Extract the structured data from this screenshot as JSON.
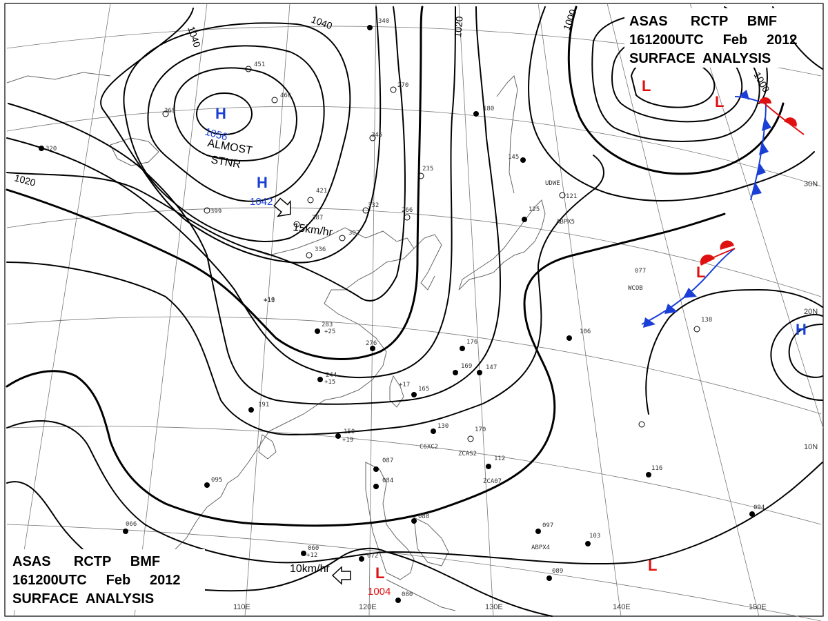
{
  "header": {
    "line1": "ASAS      RCTP     BMF",
    "line2": "161200UTC     Feb     2012",
    "line3": "SURFACE  ANALYSIS"
  },
  "isobar_labels": [
    "1040",
    "1040",
    "1020",
    "1020",
    "1000",
    "1000"
  ],
  "systems": {
    "high_main": {
      "letter": "H",
      "value": "1056",
      "color": "#1a3fd6"
    },
    "high_second": {
      "letter": "H",
      "value": "1042",
      "color": "#1a3fd6"
    },
    "high_east": {
      "letter": "H",
      "color": "#1a3fd6"
    },
    "low_north": {
      "letter": "L",
      "color": "#e01010"
    },
    "low_north2": {
      "letter": "L",
      "color": "#e01010"
    },
    "low_front": {
      "letter": "L",
      "color": "#e01010"
    },
    "low_south": {
      "letter": "L",
      "value": "1004",
      "color": "#e01010"
    },
    "low_southeast": {
      "letter": "L",
      "color": "#e01010"
    }
  },
  "annotations": {
    "stationary_line1": "ALMOST",
    "stationary_line2": "STNR",
    "motion_north": "15km/hr",
    "motion_south": "10km/hr"
  },
  "lon_labels": [
    "110E",
    "120E",
    "130E",
    "140E",
    "150E"
  ],
  "lat_labels": [
    "30N",
    "20N",
    "10N"
  ],
  "ship_ids": [
    "UDWE",
    "ABPX5",
    "WCOB",
    "C6XC2",
    "ZCAS2",
    "ZCA07",
    "ABPX4"
  ],
  "station_obs": [
    "340",
    "466",
    "451",
    "421",
    "387",
    "336",
    "302",
    "276",
    "283",
    "244",
    "191",
    "150",
    "084",
    "087",
    "088",
    "080",
    "072",
    "066",
    "060",
    "095",
    "125",
    "130",
    "112",
    "145",
    "147",
    "176",
    "169",
    "165",
    "170",
    "103",
    "089",
    "097",
    "106",
    "116",
    "094",
    "138",
    "077",
    "121",
    "180",
    "266",
    "235",
    "332",
    "345",
    "270",
    "365",
    "320",
    "399",
    "+10",
    "+12",
    "+19",
    "+17",
    "+25",
    "+15",
    "+13"
  ],
  "colors": {
    "high": "#1a3fd6",
    "low": "#e01010",
    "cold_front": "#1a3fd6",
    "warm_front": "#e01010",
    "isobar": "#000000",
    "coast": "#666666",
    "grid": "#777777"
  }
}
